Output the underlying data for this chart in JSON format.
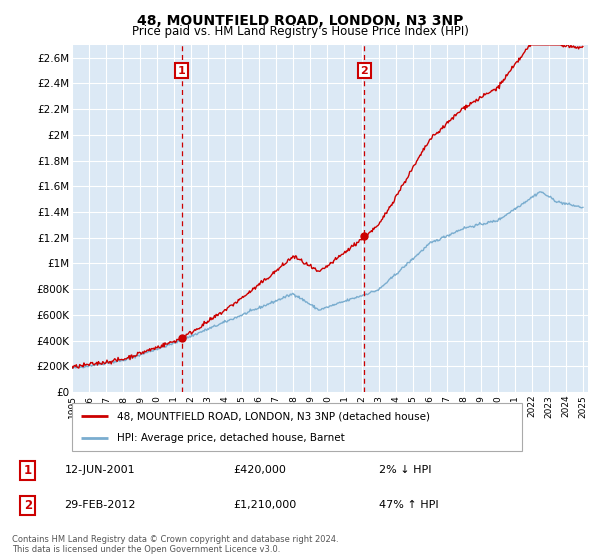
{
  "title": "48, MOUNTFIELD ROAD, LONDON, N3 3NP",
  "subtitle": "Price paid vs. HM Land Registry's House Price Index (HPI)",
  "title_fontsize": 10,
  "subtitle_fontsize": 8.5,
  "bg_color": "#dce9f5",
  "grid_color": "#ffffff",
  "line1_color": "#cc0000",
  "line2_color": "#7aadcf",
  "vline_color": "#cc0000",
  "marker_box_color": "#cc0000",
  "ylim": [
    0,
    2700000
  ],
  "yticks": [
    0,
    200000,
    400000,
    600000,
    800000,
    1000000,
    1200000,
    1400000,
    1600000,
    1800000,
    2000000,
    2200000,
    2400000,
    2600000
  ],
  "ytick_labels": [
    "£0",
    "£200K",
    "£400K",
    "£600K",
    "£800K",
    "£1M",
    "£1.2M",
    "£1.4M",
    "£1.6M",
    "£1.8M",
    "£2M",
    "£2.2M",
    "£2.4M",
    "£2.6M"
  ],
  "sale1_year": 2001.45,
  "sale1_price": 420000,
  "sale2_year": 2012.17,
  "sale2_price": 1210000,
  "legend_line1": "48, MOUNTFIELD ROAD, LONDON, N3 3NP (detached house)",
  "legend_line2": "HPI: Average price, detached house, Barnet",
  "annotation1_label": "1",
  "annotation1_date": "12-JUN-2001",
  "annotation1_price": "£420,000",
  "annotation1_hpi": "2% ↓ HPI",
  "annotation2_label": "2",
  "annotation2_date": "29-FEB-2012",
  "annotation2_price": "£1,210,000",
  "annotation2_hpi": "47% ↑ HPI",
  "footer": "Contains HM Land Registry data © Crown copyright and database right 2024.\nThis data is licensed under the Open Government Licence v3.0."
}
